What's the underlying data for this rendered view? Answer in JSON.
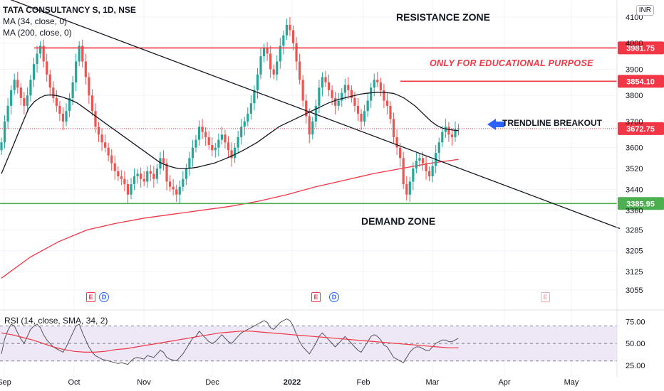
{
  "legend": {
    "title": "TATA CONSULTANCY S, 1D, NSE",
    "ma34": "MA (34, close, 0)",
    "ma200": "MA (200, close, 0)"
  },
  "currency_badge": "INR",
  "annotations": {
    "resistance_zone": "RESISTANCE ZONE",
    "demand_zone": "DEMAND ZONE",
    "educational": "ONLY FOR EDUCATIONAL PURPOSE",
    "trendline_breakout": "TRENDLINE BREAKOUT"
  },
  "events": {
    "earnings": "E",
    "dividend": "D"
  },
  "colors": {
    "up": "#26a69a",
    "down": "#ef5350",
    "resistance": "#f23645",
    "support": "#4caf50",
    "ma34": "#131722",
    "ma200": "#f23645",
    "trendline": "#131722",
    "arrow": "#2962ff",
    "rsi_line": "#555555",
    "rsi_sma": "#f23645",
    "rsi_band": "#ede7f6",
    "grid": "#f0f3fa",
    "axis_text": "#131722"
  },
  "chart_data": [
    {
      "type": "candlestick",
      "title": "TATA CONSULTANCY S, 1D, NSE",
      "x_ticks": [
        "Sep",
        "Oct",
        "Nov",
        "Dec",
        "2022",
        "Feb",
        "Mar",
        "Apr",
        "May"
      ],
      "y_ticks": [
        3055,
        3125,
        3205,
        3285,
        3360,
        3440,
        3520,
        3600,
        3700,
        3800,
        3900,
        4000,
        4100
      ],
      "ylim": [
        3040,
        4140
      ],
      "price_labels": {
        "resistance_1": "3981.75",
        "resistance_2": "3854.10",
        "current": "3672.75",
        "support": "3385.95"
      },
      "levels": {
        "resistance_1": 3981.75,
        "resistance_2": 3854.1,
        "current": 3672.75,
        "support": 3385.95
      },
      "trendline": [
        {
          "day": 0,
          "price": 4180
        },
        {
          "day": 158,
          "price": 3300
        }
      ],
      "closes": [
        3620,
        3700,
        3760,
        3820,
        3860,
        3830,
        3790,
        3760,
        3800,
        3860,
        3920,
        3960,
        3990,
        3930,
        3880,
        3830,
        3790,
        3760,
        3730,
        3700,
        3740,
        3790,
        3850,
        3930,
        3990,
        3930,
        3870,
        3800,
        3740,
        3680,
        3650,
        3620,
        3600,
        3570,
        3540,
        3510,
        3490,
        3480,
        3460,
        3420,
        3460,
        3490,
        3500,
        3480,
        3470,
        3510,
        3500,
        3480,
        3520,
        3560,
        3540,
        3470,
        3450,
        3440,
        3420,
        3450,
        3480,
        3520,
        3560,
        3600,
        3630,
        3680,
        3660,
        3640,
        3610,
        3590,
        3600,
        3630,
        3650,
        3620,
        3590,
        3560,
        3600,
        3640,
        3680,
        3700,
        3730,
        3770,
        3820,
        3880,
        3950,
        3980,
        3960,
        3900,
        3880,
        3930,
        3990,
        4030,
        4070,
        4050,
        4000,
        3930,
        3860,
        3780,
        3720,
        3650,
        3700,
        3760,
        3830,
        3870,
        3850,
        3820,
        3790,
        3760,
        3780,
        3810,
        3840,
        3820,
        3790,
        3760,
        3730,
        3700,
        3740,
        3780,
        3830,
        3860,
        3850,
        3820,
        3780,
        3760,
        3710,
        3640,
        3600,
        3560,
        3460,
        3420,
        3470,
        3520,
        3550,
        3560,
        3540,
        3510,
        3490,
        3530,
        3580,
        3620,
        3660,
        3680,
        3650,
        3640,
        3670,
        3672.75
      ],
      "ma34": [
        3500,
        3550,
        3600,
        3650,
        3700,
        3750,
        3775,
        3790,
        3800,
        3802,
        3800,
        3795,
        3788,
        3780,
        3770,
        3755,
        3740,
        3725,
        3710,
        3695,
        3680,
        3665,
        3650,
        3635,
        3620,
        3605,
        3590,
        3575,
        3560,
        3545,
        3535,
        3528,
        3522,
        3519,
        3520,
        3522,
        3525,
        3530,
        3535,
        3540,
        3548,
        3556,
        3565,
        3575,
        3585,
        3596,
        3608,
        3620,
        3635,
        3650,
        3665,
        3680,
        3690,
        3700,
        3710,
        3720,
        3730,
        3740,
        3750,
        3760,
        3770,
        3778,
        3785,
        3790,
        3795,
        3800,
        3805,
        3808,
        3810,
        3812,
        3812,
        3810,
        3808,
        3800,
        3790,
        3775,
        3760,
        3740,
        3720,
        3700,
        3685,
        3675,
        3670,
        3667,
        3665
      ],
      "ma200": [
        3100,
        3180,
        3240,
        3285,
        3310,
        3330,
        3345,
        3360,
        3375,
        3395,
        3420,
        3450,
        3475,
        3500,
        3520,
        3540,
        3555
      ],
      "series": [
        {
          "name": "MA (34, close, 0)"
        },
        {
          "name": "MA (200, close, 0)"
        }
      ]
    },
    {
      "type": "line",
      "title": "RSI (14, close, SMA, 34, 2)",
      "y_ticks": [
        "75.00",
        "50.00",
        "25.00"
      ],
      "ylim": [
        20,
        85
      ],
      "bands": [
        30,
        50,
        70
      ],
      "series": [
        {
          "name": "RSI",
          "values": [
            38,
            55,
            65,
            72,
            70,
            62,
            55,
            50,
            58,
            66,
            70,
            72,
            68,
            60,
            54,
            50,
            46,
            44,
            42,
            40,
            46,
            54,
            62,
            70,
            72,
            62,
            54,
            46,
            40,
            36,
            34,
            32,
            31,
            30,
            29,
            28,
            27,
            28,
            27,
            26,
            30,
            33,
            34,
            33,
            32,
            36,
            35,
            34,
            38,
            42,
            40,
            34,
            32,
            31,
            30,
            34,
            38,
            44,
            50,
            56,
            58,
            64,
            60,
            56,
            52,
            50,
            52,
            56,
            60,
            56,
            52,
            50,
            54,
            58,
            62,
            64,
            66,
            68,
            70,
            72,
            74,
            76,
            74,
            68,
            66,
            70,
            74,
            76,
            78,
            76,
            70,
            60,
            52,
            46,
            42,
            38,
            44,
            50,
            58,
            62,
            58,
            54,
            50,
            46,
            50,
            54,
            58,
            54,
            50,
            46,
            42,
            40,
            46,
            52,
            58,
            60,
            58,
            54,
            48,
            46,
            40,
            34,
            32,
            30,
            28,
            34,
            40,
            44,
            46,
            46,
            44,
            42,
            42,
            46,
            50,
            52,
            54,
            54,
            52,
            52,
            54,
            56
          ]
        },
        {
          "name": "SMA",
          "values": [
            62,
            60,
            57,
            54,
            50,
            46,
            43,
            41,
            40,
            40,
            41,
            43,
            44,
            46,
            48,
            50,
            52,
            54,
            56,
            58,
            60,
            62,
            63,
            64,
            64,
            63,
            62,
            61,
            60,
            59,
            58,
            57,
            56,
            55,
            54,
            53,
            52,
            51,
            50,
            49,
            48,
            47,
            46,
            45,
            45
          ]
        }
      ]
    }
  ]
}
